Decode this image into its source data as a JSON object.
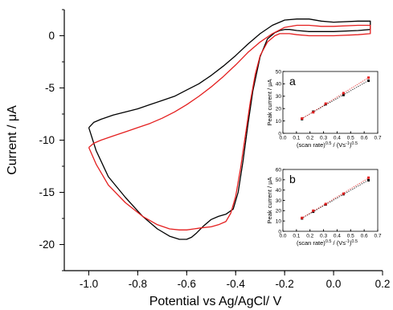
{
  "chart_data": [
    {
      "type": "line",
      "xlabel": "Potential vs Ag/AgCl/ V",
      "ylabel": "Current / μA",
      "xlim": [
        -1.1,
        0.2
      ],
      "ylim": [
        -22.5,
        2.5
      ],
      "xticks": [
        "-1.0",
        "-0.8",
        "-0.6",
        "-0.4",
        "-0.2",
        "0.0",
        "0.2"
      ],
      "yticks": [
        "0",
        "-5",
        "-10",
        "-15",
        "-20"
      ],
      "series": [
        {
          "color": "#000000",
          "x": [
            -1.0,
            -0.97,
            -0.92,
            -0.85,
            -0.78,
            -0.72,
            -0.67,
            -0.63,
            -0.6,
            -0.58,
            -0.56,
            -0.53,
            -0.5,
            -0.47,
            -0.44,
            -0.41,
            -0.39,
            -0.37,
            -0.35,
            -0.33,
            -0.3,
            -0.27,
            -0.24,
            -0.22,
            -0.2,
            -0.18,
            -0.15,
            -0.1,
            0.0,
            0.1,
            0.15,
            0.15,
            0.1,
            0.0,
            -0.05,
            -0.1,
            -0.15,
            -0.2,
            -0.25,
            -0.3,
            -0.35,
            -0.4,
            -0.45,
            -0.5,
            -0.55,
            -0.6,
            -0.65,
            -0.7,
            -0.75,
            -0.8,
            -0.85,
            -0.9,
            -0.95,
            -0.98,
            -1.0
          ],
          "y": [
            -8.8,
            -11.0,
            -13.5,
            -15.5,
            -17.3,
            -18.5,
            -19.2,
            -19.5,
            -19.5,
            -19.3,
            -18.9,
            -18.2,
            -17.6,
            -17.3,
            -17.1,
            -16.6,
            -15.0,
            -12.0,
            -8.5,
            -5.3,
            -2.0,
            -0.3,
            0.3,
            0.5,
            0.6,
            0.6,
            0.5,
            0.4,
            0.4,
            0.5,
            0.6,
            1.4,
            1.4,
            1.3,
            1.4,
            1.6,
            1.6,
            1.5,
            1.0,
            0.2,
            -0.8,
            -1.9,
            -2.9,
            -3.8,
            -4.6,
            -5.2,
            -5.8,
            -6.2,
            -6.6,
            -7.0,
            -7.3,
            -7.6,
            -8.0,
            -8.3,
            -8.8
          ]
        },
        {
          "color": "#e41e1e",
          "x": [
            -1.0,
            -0.97,
            -0.92,
            -0.85,
            -0.78,
            -0.72,
            -0.67,
            -0.63,
            -0.6,
            -0.57,
            -0.54,
            -0.5,
            -0.47,
            -0.44,
            -0.42,
            -0.4,
            -0.38,
            -0.36,
            -0.34,
            -0.32,
            -0.3,
            -0.27,
            -0.24,
            -0.22,
            -0.2,
            -0.18,
            -0.15,
            -0.1,
            0.0,
            0.1,
            0.15,
            0.15,
            0.1,
            0.0,
            -0.05,
            -0.1,
            -0.15,
            -0.2,
            -0.25,
            -0.3,
            -0.35,
            -0.4,
            -0.45,
            -0.5,
            -0.55,
            -0.6,
            -0.65,
            -0.7,
            -0.75,
            -0.8,
            -0.85,
            -0.9,
            -0.95,
            -0.98,
            -1.0
          ],
          "y": [
            -10.7,
            -12.3,
            -14.3,
            -16.0,
            -17.3,
            -18.1,
            -18.5,
            -18.6,
            -18.6,
            -18.5,
            -18.4,
            -18.3,
            -18.1,
            -17.8,
            -17.0,
            -15.4,
            -12.7,
            -9.5,
            -6.3,
            -3.7,
            -1.9,
            -0.6,
            0.0,
            0.2,
            0.2,
            0.2,
            0.1,
            0.0,
            0.0,
            0.1,
            0.2,
            1.0,
            1.0,
            0.9,
            0.9,
            1.0,
            1.0,
            0.8,
            0.2,
            -0.6,
            -1.6,
            -2.8,
            -3.9,
            -4.9,
            -5.8,
            -6.6,
            -7.3,
            -7.9,
            -8.4,
            -8.8,
            -9.2,
            -9.6,
            -10.0,
            -10.3,
            -10.7
          ]
        }
      ]
    },
    {
      "type": "scatter",
      "label": "a",
      "xlabel": "(scan rate)^0.5 / (Vs^-1)^0.5",
      "ylabel": "Peak current / μA",
      "xlim": [
        0.0,
        0.7
      ],
      "ylim": [
        0,
        50
      ],
      "xticks": [
        "0.0",
        "0.1",
        "0.2",
        "0.3",
        "0.4",
        "0.5",
        "0.6",
        "0.7"
      ],
      "yticks": [
        "0",
        "10",
        "20",
        "30",
        "40",
        "50"
      ],
      "series": [
        {
          "color": "#000000",
          "x": [
            0.141,
            0.224,
            0.316,
            0.447,
            0.632
          ],
          "y": [
            11.5,
            17.5,
            23.5,
            31.0,
            42.5
          ]
        },
        {
          "color": "#e41e1e",
          "x": [
            0.141,
            0.224,
            0.316,
            0.447,
            0.632
          ],
          "y": [
            12.0,
            17.0,
            24.0,
            32.5,
            45.0
          ]
        }
      ]
    },
    {
      "type": "scatter",
      "label": "b",
      "xlabel": "(scan rate)^0.5 / (Vs^-1)^0.5",
      "ylabel": "Peak current / μA",
      "xlim": [
        0.0,
        0.7
      ],
      "ylim": [
        0,
        60
      ],
      "xticks": [
        "0.0",
        "0.1",
        "0.2",
        "0.3",
        "0.4",
        "0.5",
        "0.6",
        "0.7"
      ],
      "yticks": [
        "0",
        "10",
        "20",
        "30",
        "40",
        "50",
        "60"
      ],
      "series": [
        {
          "color": "#000000",
          "x": [
            0.141,
            0.224,
            0.316,
            0.447,
            0.632
          ],
          "y": [
            12.5,
            19.0,
            26.0,
            36.0,
            49.5
          ]
        },
        {
          "color": "#e41e1e",
          "x": [
            0.141,
            0.224,
            0.316,
            0.447,
            0.632
          ],
          "y": [
            13.0,
            20.0,
            26.5,
            36.5,
            52.0
          ]
        }
      ]
    }
  ]
}
